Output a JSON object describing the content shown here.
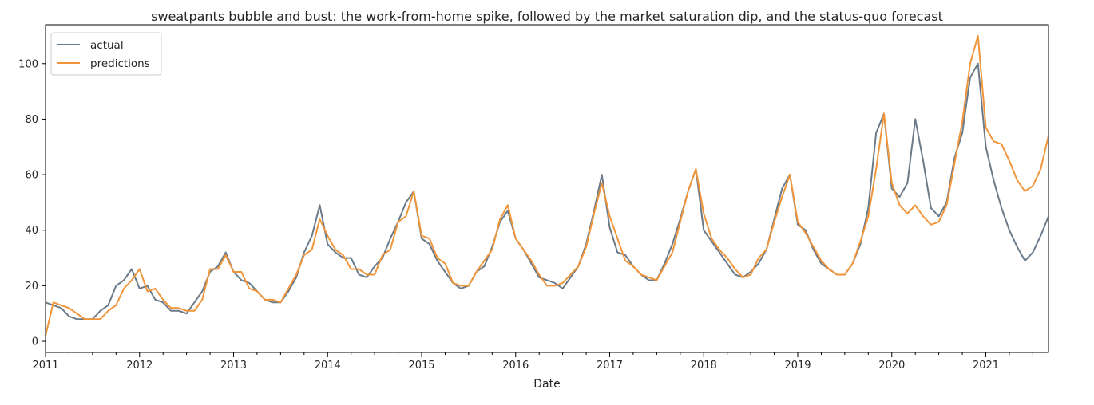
{
  "chart_data": {
    "type": "line",
    "title": "sweatpants bubble and bust: the work-from-home spike, followed by the market saturation dip, and the status-quo forecast",
    "xlabel": "Date",
    "ylabel": "",
    "x_start": "2011-01",
    "x_frequency": "monthly",
    "xlim": [
      "2011-01",
      "2021-09"
    ],
    "ylim": [
      -4,
      114
    ],
    "x_tick_labels": [
      "2011",
      "2012",
      "2013",
      "2014",
      "2015",
      "2016",
      "2017",
      "2018",
      "2019",
      "2020",
      "2021"
    ],
    "y_ticks": [
      0,
      20,
      40,
      60,
      80,
      100
    ],
    "y_tick_labels": [
      "0",
      "20",
      "40",
      "60",
      "80",
      "100"
    ],
    "grid": false,
    "legend": "top-left",
    "series": [
      {
        "name": "actual",
        "color": "#6b7a89",
        "values": [
          14,
          13,
          12,
          9,
          8,
          8,
          8,
          11,
          13,
          20,
          22,
          26,
          19,
          20,
          15,
          14,
          11,
          11,
          10,
          14,
          18,
          25,
          27,
          32,
          25,
          22,
          21,
          18,
          15,
          14,
          14,
          18,
          23,
          32,
          38,
          49,
          35,
          32,
          30,
          30,
          24,
          23,
          27,
          30,
          37,
          43,
          50,
          54,
          37,
          35,
          29,
          25,
          21,
          19,
          20,
          25,
          27,
          34,
          43,
          47,
          37,
          33,
          28,
          23,
          22,
          21,
          19,
          23,
          27,
          35,
          47,
          60,
          41,
          32,
          31,
          27,
          24,
          22,
          22,
          28,
          35,
          44,
          54,
          62,
          40,
          36,
          32,
          28,
          24,
          23,
          25,
          28,
          33,
          44,
          55,
          60,
          42,
          40,
          33,
          28,
          26,
          24,
          24,
          28,
          35,
          48,
          75,
          82,
          55,
          52,
          57,
          80,
          65,
          48,
          45,
          50,
          66,
          75,
          95,
          100,
          70,
          58,
          48,
          40,
          34,
          29,
          32,
          38,
          45
        ]
      },
      {
        "name": "predictions",
        "color": "#f0953a",
        "values": [
          2,
          14,
          13,
          12,
          10,
          8,
          8,
          8,
          11,
          13,
          19,
          22,
          26,
          18,
          19,
          15,
          12,
          12,
          11,
          11,
          15,
          26,
          26,
          31,
          25,
          25,
          19,
          18,
          15,
          15,
          14,
          19,
          24,
          31,
          33,
          44,
          38,
          33,
          31,
          26,
          26,
          24,
          24,
          31,
          33,
          43,
          45,
          54,
          38,
          37,
          30,
          28,
          21,
          20,
          20,
          25,
          29,
          33,
          44,
          49,
          37,
          33,
          29,
          24,
          20,
          20,
          21,
          24,
          27,
          34,
          46,
          57,
          45,
          37,
          29,
          27,
          24,
          23,
          22,
          27,
          32,
          43,
          54,
          62,
          46,
          37,
          33,
          30,
          26,
          23,
          24,
          30,
          33,
          43,
          52,
          60,
          43,
          39,
          34,
          29,
          26,
          24,
          24,
          28,
          36,
          45,
          62,
          82,
          57,
          49,
          46,
          49,
          45,
          42,
          43,
          49,
          64,
          79,
          100,
          110,
          77,
          72,
          71,
          65,
          58,
          54,
          56,
          62,
          74
        ]
      }
    ]
  }
}
